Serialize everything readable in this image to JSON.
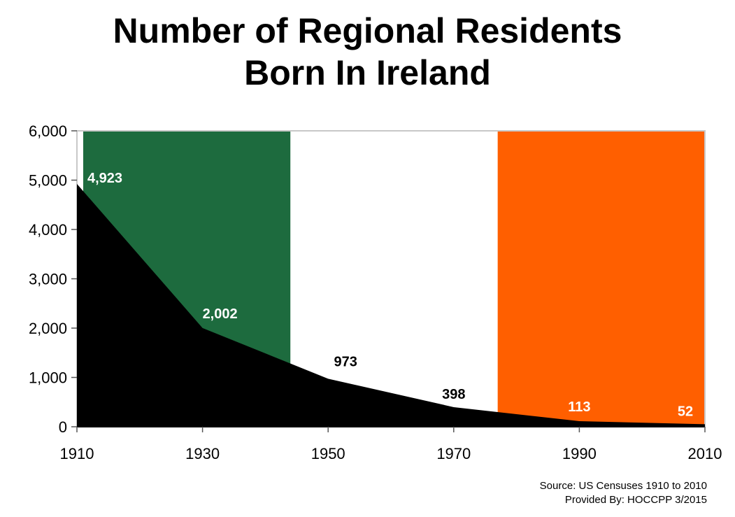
{
  "chart_data": {
    "type": "area",
    "title": "Number of Regional Residents Born In Ireland",
    "title_lines": [
      "Number of Regional Residents",
      "Born In Ireland"
    ],
    "x": [
      1910,
      1930,
      1950,
      1970,
      1990,
      2010
    ],
    "x_tick_labels": [
      "1910",
      "1930",
      "1950",
      "1970",
      "1990",
      "2010"
    ],
    "y_tick_labels": [
      "0",
      "1,000",
      "2,000",
      "3,000",
      "4,000",
      "5,000",
      "6,000"
    ],
    "series": [
      {
        "values": [
          4923,
          2002,
          973,
          398,
          113,
          52
        ],
        "color": "#000000"
      }
    ],
    "data_labels": [
      "4,923",
      "2,002",
      "973",
      "398",
      "113",
      "52"
    ],
    "xlim": [
      1910,
      2010
    ],
    "ylim": [
      0,
      6000
    ],
    "grid": false,
    "legend": "none",
    "background_bands": [
      {
        "x_start": 1911,
        "x_end": 1944,
        "color": "#1d6b3e"
      },
      {
        "x_start": 1944,
        "x_end": 1977,
        "color": "#ffffff"
      },
      {
        "x_start": 1977,
        "x_end": 2010,
        "color": "#ff5f00"
      }
    ]
  },
  "source": {
    "line1": "Source: US Censuses 1910 to 2010",
    "line2": "Provided By: HOCCPP 3/2015"
  }
}
